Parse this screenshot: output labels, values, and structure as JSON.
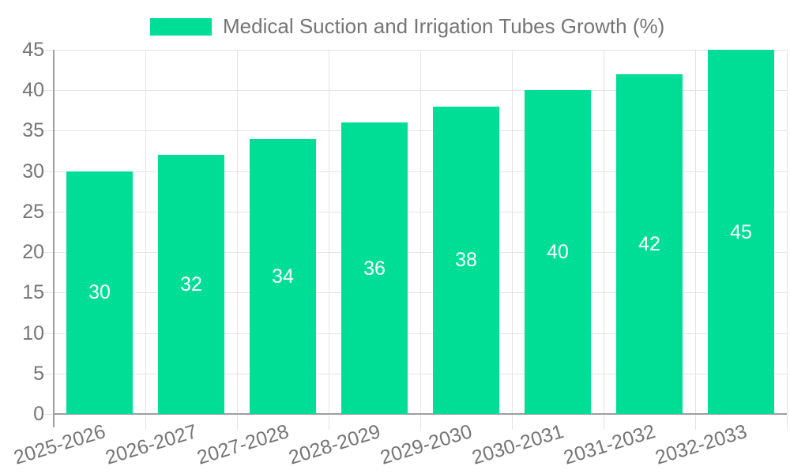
{
  "chart_data": {
    "type": "bar",
    "title": "Medical Suction and Irrigation Tubes Growth (%)",
    "series_name": "Medical Suction and Irrigation Tubes Growth (%)",
    "categories": [
      "2025-2026",
      "2026-2027",
      "2027-2028",
      "2028-2029",
      "2029-2030",
      "2030-2031",
      "2031-2032",
      "2032-2033"
    ],
    "values": [
      30,
      32,
      34,
      36,
      38,
      40,
      42,
      45
    ],
    "data_labels": [
      "30",
      "32",
      "34",
      "36",
      "38",
      "40",
      "42",
      "45"
    ],
    "xlabel": "",
    "ylabel": "",
    "ylim": [
      0,
      45
    ],
    "ytick_step": 5,
    "yticks": [
      0,
      5,
      10,
      15,
      20,
      25,
      30,
      35,
      40,
      45
    ],
    "ytick_labels": [
      "0",
      "5",
      "10",
      "15",
      "20",
      "25",
      "30",
      "35",
      "40",
      "45"
    ],
    "grid": true,
    "legend_position": "top",
    "x_label_rotation_deg": -17,
    "colors": {
      "bar": "#00DE95",
      "data_label_text": "#ffffff",
      "axis_text": "#757575",
      "gridline": "#e3e3e3",
      "axis_line": "#9e9e9e",
      "background": "#ffffff"
    }
  }
}
